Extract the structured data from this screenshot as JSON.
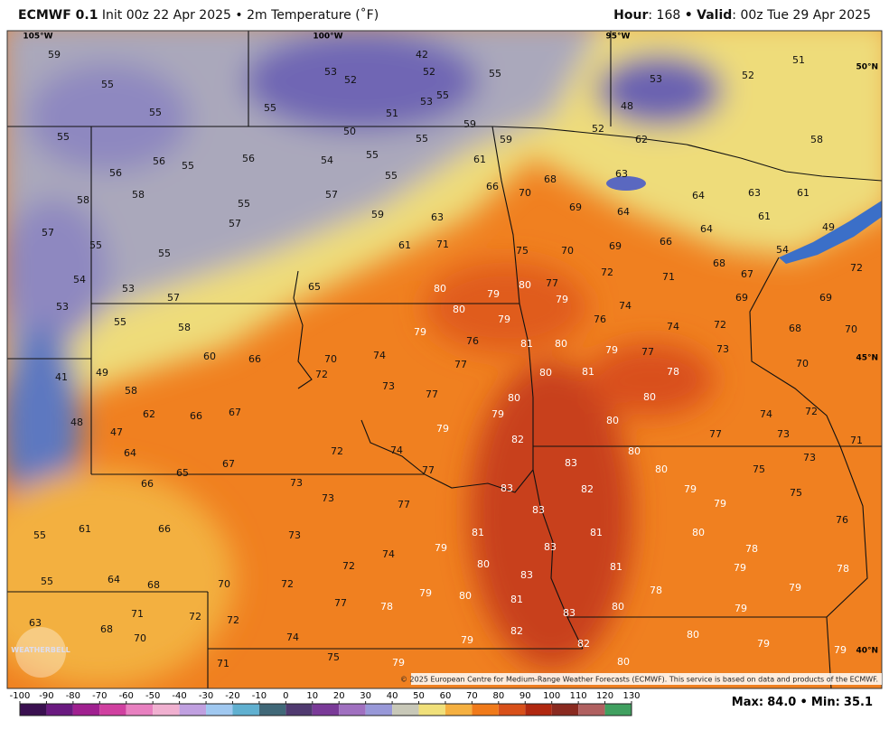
{
  "header": {
    "model": "ECMWF 0.1",
    "init": "Init 00z 22 Apr 2025",
    "bullet": "•",
    "field": "2m Temperature (˚F)",
    "hour_label": "Hour",
    "colon": ":",
    "hour_value": "168",
    "valid_label": "Valid",
    "valid_value": "00z Tue 29 Apr 2025"
  },
  "map": {
    "lon_labels": [
      "105°W",
      "100°W",
      "95°W"
    ],
    "lat_labels": [
      "50°N",
      "45°N",
      "40°N"
    ],
    "labels": [
      59,
      55,
      55,
      53,
      52,
      42,
      52,
      55,
      55,
      53,
      51,
      55,
      59,
      50,
      55,
      59,
      55,
      52,
      62,
      51,
      52,
      53,
      58,
      48,
      56,
      56,
      55,
      56,
      54,
      55,
      55,
      61,
      66,
      70,
      68,
      63,
      64,
      63,
      61,
      58,
      58,
      57,
      55,
      57,
      69,
      64,
      61,
      49,
      57,
      55,
      55,
      59,
      63,
      66,
      64,
      61,
      71,
      75,
      70,
      69,
      54,
      72,
      54,
      53,
      65,
      80,
      79,
      80,
      77,
      72,
      71,
      68,
      67,
      69,
      53,
      57,
      79,
      74,
      69,
      55,
      58,
      80,
      79,
      76,
      74,
      72,
      68,
      70,
      79,
      76,
      81,
      80,
      79,
      77,
      73,
      60,
      66,
      70,
      74,
      77,
      80,
      81,
      78,
      70,
      49,
      41,
      58,
      72,
      73,
      77,
      80,
      80,
      74,
      72,
      62,
      66,
      67,
      79,
      80,
      48,
      47,
      79,
      82,
      77,
      73,
      71,
      64,
      72,
      74,
      80,
      77,
      83,
      80,
      75,
      73,
      65,
      67,
      66,
      73,
      83,
      82,
      79,
      75,
      73,
      77,
      83,
      79,
      76,
      61,
      66,
      55,
      73,
      81,
      81,
      80,
      79,
      83,
      78,
      74,
      72,
      80,
      83,
      81,
      79,
      78,
      55,
      64,
      68,
      70,
      72,
      79,
      80,
      78,
      79,
      81,
      77,
      78,
      80,
      79,
      63,
      68,
      71,
      72,
      72,
      83,
      80,
      70,
      74,
      79,
      82,
      82,
      79,
      75,
      71,
      79,
      80,
      79
    ],
    "logo": "WEATHERBELL",
    "copyright": "© 2025 European Centre for Medium-Range Weather Forecasts (ECMWF). This service is based on data and products of the ECMWF."
  },
  "colorbar": {
    "range": [
      -100,
      130
    ],
    "ticks": [
      -100,
      -90,
      -80,
      -70,
      -60,
      -50,
      -40,
      -30,
      -20,
      -10,
      0,
      10,
      20,
      30,
      40,
      50,
      60,
      70,
      80,
      90,
      100,
      110,
      120,
      130
    ],
    "colors": [
      "#3a1050",
      "#6a1a80",
      "#a02090",
      "#d040a0",
      "#e880c0",
      "#f0b0d0",
      "#c0a0e0",
      "#a0c8f0",
      "#60b0d0",
      "#406878",
      "#503a70",
      "#7a3a98",
      "#a070c0",
      "#9898d8",
      "#c8c8b8",
      "#f0e07a",
      "#f5b040",
      "#f07a1a",
      "#d8501a",
      "#b02810",
      "#8a2a20",
      "#b06060",
      "#40a060"
    ]
  },
  "footer": {
    "max_label": "Max",
    "colon": ":",
    "max": "84.0",
    "bullet": "•",
    "min_label": "Min",
    "min": "35.1"
  }
}
